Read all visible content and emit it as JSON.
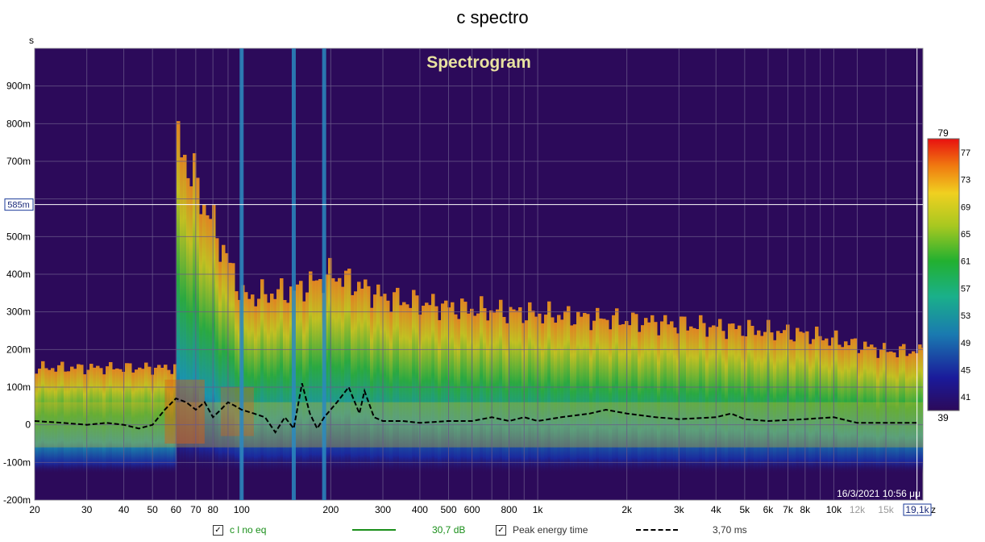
{
  "window": {
    "title": "c spectro"
  },
  "chart_data": {
    "type": "heatmap",
    "title": "Spectrogram",
    "xlabel": "Hz",
    "ylabel": "s",
    "x_scale": "log",
    "xlim": [
      20,
      20000
    ],
    "ylim": [
      -0.2,
      1.0
    ],
    "x_ticks": [
      {
        "value": 20,
        "label": "20"
      },
      {
        "value": 30,
        "label": "30"
      },
      {
        "value": 40,
        "label": "40"
      },
      {
        "value": 50,
        "label": "50"
      },
      {
        "value": 60,
        "label": "60"
      },
      {
        "value": 70,
        "label": "70"
      },
      {
        "value": 80,
        "label": "80"
      },
      {
        "value": 100,
        "label": "100"
      },
      {
        "value": 200,
        "label": "200"
      },
      {
        "value": 300,
        "label": "300"
      },
      {
        "value": 400,
        "label": "400"
      },
      {
        "value": 500,
        "label": "500"
      },
      {
        "value": 600,
        "label": "600"
      },
      {
        "value": 800,
        "label": "800"
      },
      {
        "value": 1000,
        "label": "1k"
      },
      {
        "value": 2000,
        "label": "2k"
      },
      {
        "value": 3000,
        "label": "3k"
      },
      {
        "value": 4000,
        "label": "4k"
      },
      {
        "value": 5000,
        "label": "5k"
      },
      {
        "value": 6000,
        "label": "6k"
      },
      {
        "value": 7000,
        "label": "7k"
      },
      {
        "value": 8000,
        "label": "8k"
      },
      {
        "value": 10000,
        "label": "10k"
      },
      {
        "value": 12000,
        "label": "12k"
      },
      {
        "value": 15000,
        "label": "15k"
      }
    ],
    "y_ticks": [
      {
        "value": 0.9,
        "label": "900m"
      },
      {
        "value": 0.8,
        "label": "800m"
      },
      {
        "value": 0.7,
        "label": "700m"
      },
      {
        "value": 0.5,
        "label": "500m"
      },
      {
        "value": 0.4,
        "label": "400m"
      },
      {
        "value": 0.3,
        "label": "300m"
      },
      {
        "value": 0.2,
        "label": "200m"
      },
      {
        "value": 0.1,
        "label": "100m"
      },
      {
        "value": 0.0,
        "label": "0"
      },
      {
        "value": -0.1,
        "label": "-100m"
      },
      {
        "value": -0.2,
        "label": "-200m"
      }
    ],
    "cursor": {
      "time": 0.585,
      "time_label": "585m",
      "freq": 19100,
      "freq_label": "19,1k"
    },
    "x_unit_fragment": "z",
    "color_scale": {
      "min": 39,
      "max": 79,
      "min_label": "39",
      "max_label": "79",
      "tick_values": [
        77,
        73,
        69,
        65,
        61,
        57,
        53,
        49,
        45,
        41
      ],
      "tick_labels": [
        "77",
        "73",
        "69",
        "65",
        "61",
        "57",
        "53",
        "49",
        "45",
        "41"
      ]
    },
    "timestamp": "16/3/2021 10:56 μμ",
    "peak_energy_time": [
      [
        20,
        0.01
      ],
      [
        25,
        0.005
      ],
      [
        30,
        0.0
      ],
      [
        35,
        0.005
      ],
      [
        40,
        0.0
      ],
      [
        45,
        -0.01
      ],
      [
        50,
        0.0
      ],
      [
        55,
        0.04
      ],
      [
        60,
        0.07
      ],
      [
        65,
        0.06
      ],
      [
        70,
        0.04
      ],
      [
        75,
        0.06
      ],
      [
        80,
        0.02
      ],
      [
        85,
        0.04
      ],
      [
        90,
        0.06
      ],
      [
        95,
        0.05
      ],
      [
        100,
        0.04
      ],
      [
        110,
        0.03
      ],
      [
        120,
        0.02
      ],
      [
        130,
        -0.02
      ],
      [
        140,
        0.02
      ],
      [
        150,
        -0.01
      ],
      [
        160,
        0.11
      ],
      [
        170,
        0.03
      ],
      [
        180,
        -0.01
      ],
      [
        190,
        0.02
      ],
      [
        210,
        0.06
      ],
      [
        230,
        0.1
      ],
      [
        250,
        0.03
      ],
      [
        260,
        0.09
      ],
      [
        280,
        0.02
      ],
      [
        300,
        0.01
      ],
      [
        350,
        0.01
      ],
      [
        400,
        0.005
      ],
      [
        500,
        0.01
      ],
      [
        600,
        0.01
      ],
      [
        700,
        0.02
      ],
      [
        800,
        0.01
      ],
      [
        900,
        0.02
      ],
      [
        1000,
        0.01
      ],
      [
        1200,
        0.02
      ],
      [
        1500,
        0.03
      ],
      [
        1700,
        0.04
      ],
      [
        2000,
        0.03
      ],
      [
        2500,
        0.02
      ],
      [
        3000,
        0.015
      ],
      [
        4000,
        0.02
      ],
      [
        4500,
        0.03
      ],
      [
        5000,
        0.015
      ],
      [
        6000,
        0.01
      ],
      [
        8000,
        0.015
      ],
      [
        10000,
        0.02
      ],
      [
        12000,
        0.005
      ],
      [
        15000,
        0.005
      ],
      [
        19100,
        0.005
      ]
    ],
    "energy_ridges": [
      {
        "freq": 60,
        "top": 0.85,
        "peak": 0.0
      },
      {
        "freq": 100,
        "top": 0.38,
        "peak": 0.05
      },
      {
        "freq": 150,
        "top": 0.4,
        "peak": 0.03
      },
      {
        "freq": 200,
        "top": 0.45,
        "peak": 0.05
      },
      {
        "freq": 300,
        "top": 0.38,
        "peak": 0.0
      },
      {
        "freq": 500,
        "top": 0.35,
        "peak": 0.0
      },
      {
        "freq": 1000,
        "top": 0.33,
        "peak": 0.0
      },
      {
        "freq": 3000,
        "top": 0.3,
        "peak": 0.0
      },
      {
        "freq": 8000,
        "top": 0.27,
        "peak": 0.0
      },
      {
        "freq": 15000,
        "top": 0.22,
        "peak": 0.0
      }
    ],
    "resonance_lines": [
      100,
      150,
      190
    ]
  },
  "legend": [
    {
      "label": "c l no eq",
      "value": "30,7 dB",
      "checked": true,
      "line_color": "#1a8f1a",
      "text_color": "#1a8f1a",
      "style": "solid"
    },
    {
      "label": "Peak energy time",
      "value": "3,70 ms",
      "checked": true,
      "line_color": "#000000",
      "text_color": "#333333",
      "style": "dashed"
    }
  ],
  "colors": {
    "plot_bg": "#2c0a5a",
    "grid": "#6a5a8a",
    "title_text": "#e8e2a0",
    "cursor_label_border": "#1a3a9a",
    "cursor_label_text": "#1a2a7a"
  }
}
